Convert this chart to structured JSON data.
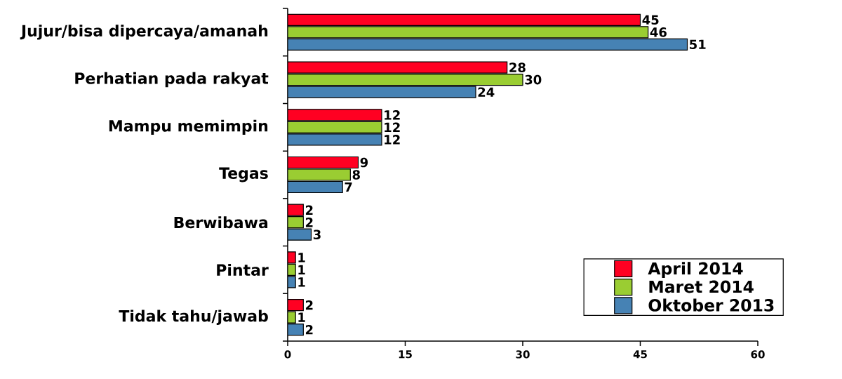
{
  "chart_data": {
    "type": "bar",
    "orientation": "horizontal",
    "categories": [
      "Jujur/bisa dipercaya/amanah",
      "Perhatian pada rakyat",
      "Mampu memimpin",
      "Tegas",
      "Berwibawa",
      "Pintar",
      "Tidak tahu/jawab"
    ],
    "series": [
      {
        "name": "April 2014",
        "color": "#ff0022",
        "values": [
          45,
          28,
          12,
          9,
          2,
          1,
          2
        ]
      },
      {
        "name": "Maret 2014",
        "color": "#9acd32",
        "values": [
          46,
          30,
          12,
          8,
          2,
          1,
          1
        ]
      },
      {
        "name": "Oktober 2013",
        "color": "#4682b4",
        "values": [
          51,
          24,
          12,
          7,
          3,
          1,
          2
        ]
      }
    ],
    "xlim": [
      0,
      60
    ],
    "xticks": [
      0,
      15,
      30,
      45,
      60
    ],
    "data_labels": true,
    "legend": "bottom right"
  }
}
